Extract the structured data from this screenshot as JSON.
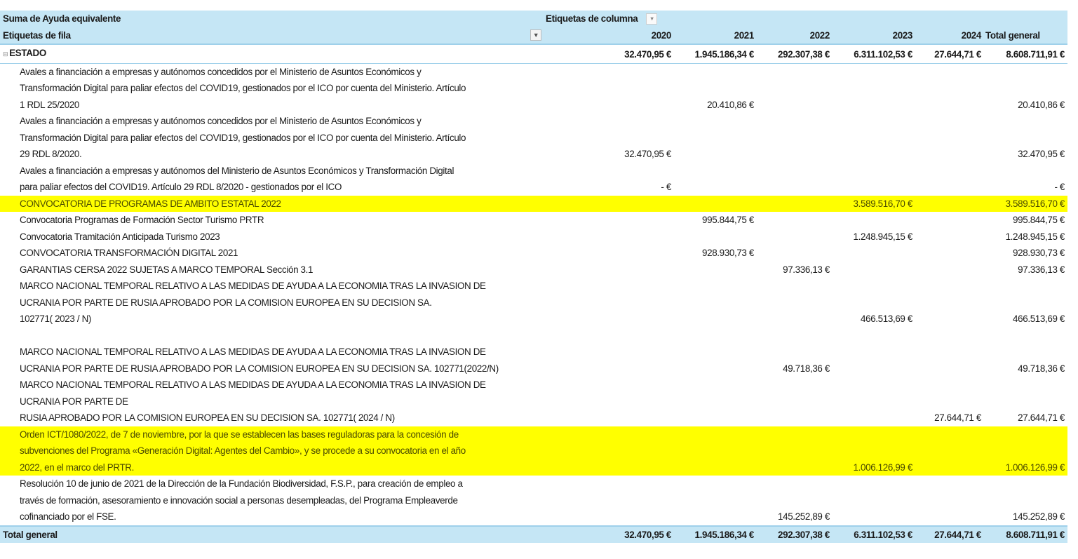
{
  "header": {
    "value_field": "Suma de Ayuda equivalente",
    "column_labels": "Etiquetas de columna",
    "row_labels": "Etiquetas de fila",
    "years": [
      "2020",
      "2021",
      "2022",
      "2023",
      "2024",
      "Total general"
    ]
  },
  "group": {
    "label": "ESTADO",
    "values": [
      "32.470,95 €",
      "1.945.186,34 €",
      "292.307,38 €",
      "6.311.102,53 €",
      "27.644,71 €",
      "8.608.711,91 €"
    ]
  },
  "rows": [
    {
      "label": "Avales a financiación a empresas y autónomos concedidos por el Ministerio de Asuntos Económicos y\nTransformación Digital para paliar efectos del COVID19, gestionados por el ICO por cuenta del Ministerio. Artículo\n1 RDL 25/2020",
      "values": [
        "",
        "20.410,86 €",
        "",
        "",
        "",
        "20.410,86 €"
      ]
    },
    {
      "label": "Avales a financiación a empresas y autónomos concedidos por el Ministerio de Asuntos Económicos y\nTransformación Digital para paliar efectos del COVID19, gestionados por el ICO por cuenta del Ministerio. Artículo\n29 RDL 8/2020.",
      "values": [
        "32.470,95 €",
        "",
        "",
        "",
        "",
        "32.470,95 €"
      ]
    },
    {
      "label": "Avales a financiación a empresas y autónomos del Ministerio de Asuntos Económicos y Transformación Digital\npara paliar efectos del COVID19. Artículo 29 RDL 8/2020 - gestionados por el ICO",
      "values": [
        "-   €",
        "",
        "",
        "",
        "",
        "-   €"
      ]
    },
    {
      "label": "CONVOCATORIA DE PROGRAMAS DE AMBITO ESTATAL 2022",
      "values": [
        "",
        "",
        "",
        "3.589.516,70 €",
        "",
        "3.589.516,70 €"
      ],
      "highlight": true
    },
    {
      "label": "Convocatoria Programas de Formación Sector Turismo PRTR",
      "values": [
        "",
        "995.844,75 €",
        "",
        "",
        "",
        "995.844,75 €"
      ]
    },
    {
      "label": "Convocatoria Tramitación Anticipada Turismo 2023",
      "values": [
        "",
        "",
        "",
        "1.248.945,15 €",
        "",
        "1.248.945,15 €"
      ]
    },
    {
      "label": "CONVOCATORIA TRANSFORMACIÓN DIGITAL 2021",
      "values": [
        "",
        "928.930,73 €",
        "",
        "",
        "",
        "928.930,73 €"
      ]
    },
    {
      "label": "GARANTIAS CERSA 2022 SUJETAS A MARCO TEMPORAL Sección 3.1",
      "values": [
        "",
        "",
        "97.336,13 €",
        "",
        "",
        "97.336,13 €"
      ]
    },
    {
      "label": "MARCO NACIONAL TEMPORAL RELATIVO A LAS MEDIDAS DE AYUDA A LA ECONOMIA TRAS LA INVASION DE\nUCRANIA POR PARTE DE RUSIA APROBADO POR LA COMISION EUROPEA EN SU DECISION SA.\n 102771( 2023 / N)",
      "values": [
        "",
        "",
        "",
        "466.513,69 €",
        "",
        "466.513,69 €"
      ],
      "spacer": true
    },
    {
      "label": "MARCO NACIONAL TEMPORAL RELATIVO A LAS MEDIDAS DE AYUDA A LA ECONOMIA TRAS LA INVASION DE\nUCRANIA POR PARTE DE RUSIA APROBADO POR LA COMISION EUROPEA EN SU DECISION SA. 102771(2022/N)",
      "values": [
        "",
        "",
        "49.718,36 €",
        "",
        "",
        "49.718,36 €"
      ]
    },
    {
      "label": "MARCO NACIONAL TEMPORAL RELATIVO A LAS MEDIDAS DE AYUDA A LA ECONOMIA TRAS LA INVASION DE\nUCRANIA POR PARTE DE\nRUSIA APROBADO POR LA COMISION EUROPEA EN SU DECISION SA. 102771( 2024 / N)",
      "values": [
        "",
        "",
        "",
        "",
        "27.644,71 €",
        "27.644,71 €"
      ]
    },
    {
      "label": "Orden ICT/1080/2022, de 7 de noviembre, por la que se establecen las bases reguladoras para la concesión de\nsubvenciones del Programa «Generación Digital: Agentes del Cambio», y se procede a su convocatoria en el año\n2022, en el marco del PRTR.",
      "values": [
        "",
        "",
        "",
        "1.006.126,99 €",
        "",
        "1.006.126,99 €"
      ],
      "highlight": true
    },
    {
      "label": "Resolución 10 de junio de 2021 de la Dirección de la Fundación Biodiversidad, F.S.P., para creación de empleo a\ntravés de formación, asesoramiento e innovación social a personas desempleadas, del Programa Empleaverde\ncofinanciado por el FSE.",
      "values": [
        "",
        "",
        "145.252,89 €",
        "",
        "",
        "145.252,89 €"
      ]
    }
  ],
  "total": {
    "label": "Total general",
    "values": [
      "32.470,95 €",
      "1.945.186,34 €",
      "292.307,38 €",
      "6.311.102,53 €",
      "27.644,71 €",
      "8.608.711,91 €"
    ]
  },
  "colors": {
    "header_bg": "#c5e6f5",
    "highlight": "#ffff00"
  }
}
